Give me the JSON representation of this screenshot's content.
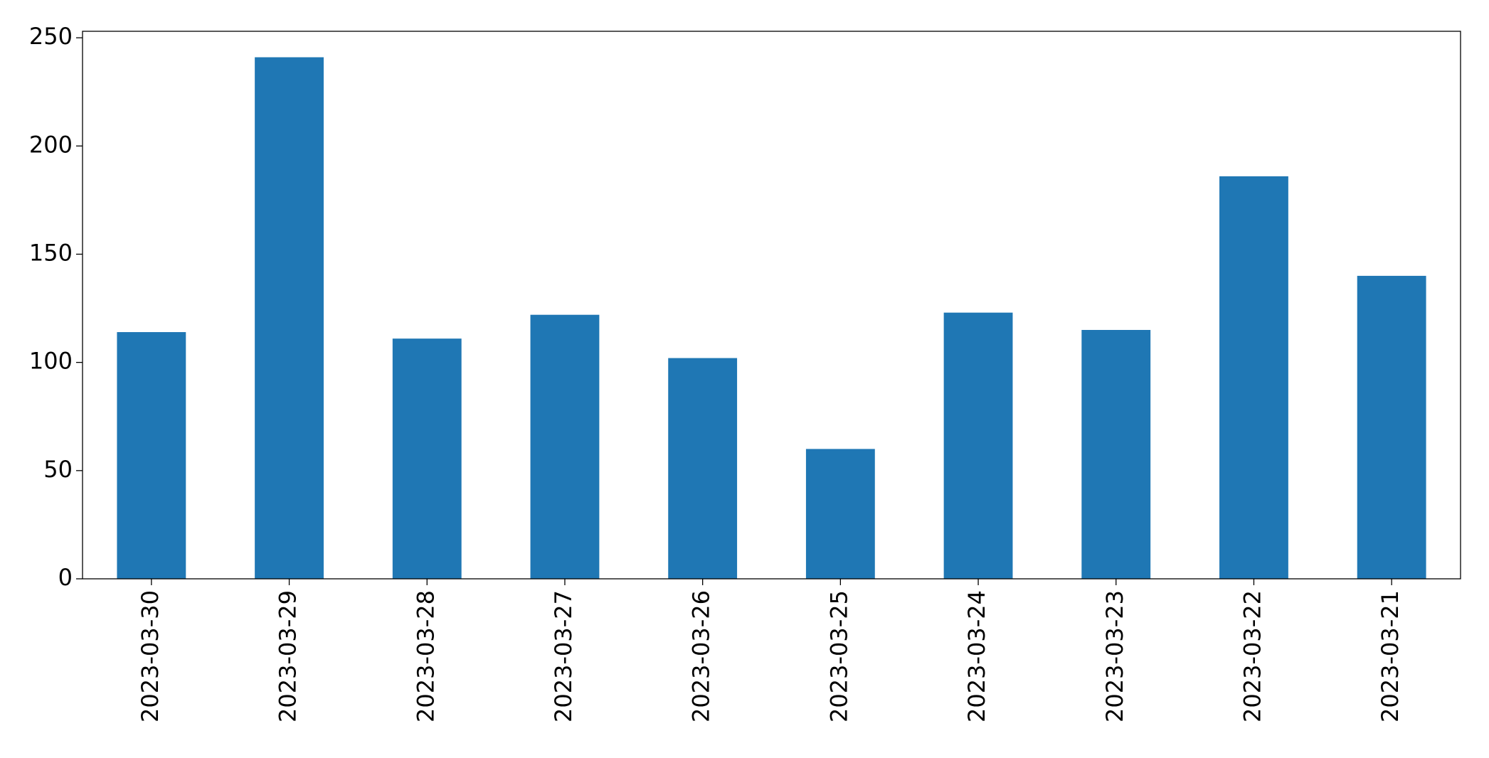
{
  "chart_data": {
    "type": "bar",
    "categories": [
      "2023-03-30",
      "2023-03-29",
      "2023-03-28",
      "2023-03-27",
      "2023-03-26",
      "2023-03-25",
      "2023-03-24",
      "2023-03-23",
      "2023-03-22",
      "2023-03-21"
    ],
    "values": [
      114,
      241,
      111,
      122,
      102,
      60,
      123,
      115,
      186,
      140
    ],
    "color": "#1f77b4",
    "ylim": [
      0,
      253
    ],
    "yticks": [
      0,
      50,
      100,
      150,
      200,
      250
    ],
    "grid": false
  }
}
